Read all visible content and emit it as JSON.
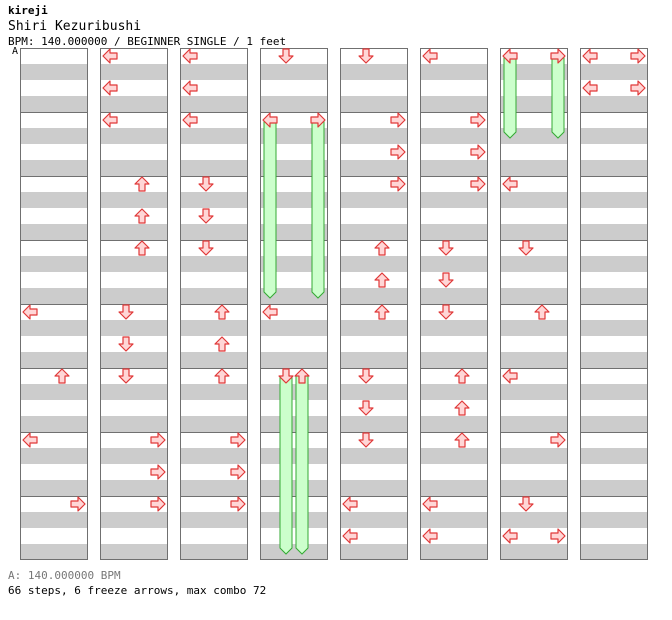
{
  "header": {
    "stepmaker": "kireji",
    "song": "Shiri Kezuribushi",
    "info": "BPM: 140.000000 / BEGINNER SINGLE / 1 feet"
  },
  "bpm_marker": "A",
  "footer": {
    "bpm_line": "A: 140.000000 BPM",
    "stats": "66 steps, 6 freeze arrows, max combo 72"
  },
  "colors": {
    "stripe": "#cccccc",
    "border": "#707070",
    "arrow_fill": "#ffd6d6",
    "arrow_stroke": "#e03838",
    "freeze_fill": "#ccffcc",
    "freeze_stroke": "#33aa33"
  },
  "chart_data": {
    "type": "step-chart",
    "columns": 8,
    "measures_per_column": 8,
    "slots_per_measure": 4,
    "notes": [
      {
        "m": 0,
        "s": 0,
        "d": "L"
      },
      {
        "m": 0,
        "s": 1,
        "d": "L"
      },
      {
        "m": 0,
        "s": 2,
        "d": "L"
      },
      {
        "m": 0,
        "s": 3,
        "d": "L"
      },
      {
        "m": 0,
        "s": 4,
        "d": "L"
      },
      {
        "m": 0,
        "s": 5,
        "d": "L"
      },
      {
        "m": 0,
        "s": 6,
        "d": "L"
      },
      {
        "m": 0,
        "s": 6.5,
        "d": "U"
      },
      {
        "m": 0,
        "s": 7.5,
        "d": "U"
      },
      {
        "m": 0,
        "s": 8.5,
        "d": "U"
      },
      {
        "m": 0,
        "s": 9.5,
        "d": "L"
      },
      {
        "m": 0,
        "s": 11.5,
        "d": "U"
      },
      {
        "m": 0,
        "s": 13.5,
        "d": "U"
      },
      {
        "m": 0,
        "s": 15.5,
        "d": "U"
      },
      {
        "m": 0,
        "s": 17.5,
        "d": "U"
      },
      {
        "m": 0,
        "s": 18.5,
        "d": "L"
      },
      {
        "m": 0,
        "s": 20,
        "d": "R"
      },
      {
        "m": 0,
        "s": 22,
        "d": "R"
      },
      {
        "m": 0,
        "s": 24,
        "d": "R"
      },
      {
        "m": 0,
        "s": 26,
        "d": "R"
      },
      {
        "m": 0,
        "s": 28,
        "d": "R"
      },
      {
        "m": 0,
        "s": 30,
        "d": "R"
      },
      {
        "m": 0,
        "s": 32,
        "d": "R"
      },
      {
        "m": 8,
        "s": 0,
        "d": "L"
      },
      {
        "m": 8,
        "s": 1,
        "d": "L"
      },
      {
        "m": 8,
        "s": 2,
        "d": "L"
      },
      {
        "m": 8,
        "s": 4,
        "d": "D"
      },
      {
        "m": 8,
        "s": 5,
        "d": "D"
      },
      {
        "m": 8,
        "s": 6,
        "d": "D"
      },
      {
        "m": 8,
        "s": 8,
        "d": "U"
      },
      {
        "m": 8,
        "s": 9,
        "d": "U"
      },
      {
        "m": 8,
        "s": 10,
        "d": "U"
      },
      {
        "m": 8,
        "s": 12,
        "d": "R"
      },
      {
        "m": 8,
        "s": 13,
        "d": "R"
      },
      {
        "m": 8,
        "s": 14,
        "d": "R"
      },
      {
        "m": 8,
        "s": 16,
        "d": "R"
      },
      {
        "m": 8,
        "s": 18,
        "d": "D"
      },
      {
        "m": 8,
        "s": 20,
        "d": "D"
      },
      {
        "m": 8,
        "s": 22,
        "d": "D"
      },
      {
        "m": 8,
        "s": 24,
        "d": "U"
      },
      {
        "m": 8,
        "s": 26,
        "d": "U"
      },
      {
        "m": 8,
        "s": 28,
        "d": "U"
      },
      {
        "m": 8,
        "s": 30,
        "d": "U"
      }
    ],
    "note_cells": [
      {
        "col": 0,
        "row": 8,
        "x": 10,
        "d": "L"
      },
      {
        "col": 0,
        "row": 10,
        "x": 42,
        "d": "U"
      },
      {
        "col": 0,
        "row": 12,
        "x": 10,
        "d": "L"
      },
      {
        "col": 0,
        "row": 14,
        "x": 58,
        "d": "R"
      },
      {
        "col": 1,
        "row": 0,
        "x": 10,
        "d": "L"
      },
      {
        "col": 1,
        "row": 1,
        "x": 10,
        "d": "L"
      },
      {
        "col": 1,
        "row": 2,
        "x": 10,
        "d": "L"
      },
      {
        "col": 1,
        "row": 4,
        "x": 42,
        "d": "U"
      },
      {
        "col": 1,
        "row": 5,
        "x": 42,
        "d": "U"
      },
      {
        "col": 1,
        "row": 6,
        "x": 42,
        "d": "U"
      },
      {
        "col": 1,
        "row": 8,
        "x": 26,
        "d": "D"
      },
      {
        "col": 1,
        "row": 9,
        "x": 26,
        "d": "D"
      },
      {
        "col": 1,
        "row": 10,
        "x": 26,
        "d": "D"
      },
      {
        "col": 1,
        "row": 12,
        "x": 58,
        "d": "R"
      },
      {
        "col": 1,
        "row": 13,
        "x": 58,
        "d": "R"
      },
      {
        "col": 1,
        "row": 14,
        "x": 58,
        "d": "R"
      },
      {
        "col": 2,
        "row": 0,
        "x": 10,
        "d": "L"
      },
      {
        "col": 2,
        "row": 1,
        "x": 10,
        "d": "L"
      },
      {
        "col": 2,
        "row": 2,
        "x": 10,
        "d": "L"
      },
      {
        "col": 2,
        "row": 4,
        "x": 26,
        "d": "D"
      },
      {
        "col": 2,
        "row": 5,
        "x": 26,
        "d": "D"
      },
      {
        "col": 2,
        "row": 6,
        "x": 26,
        "d": "D"
      },
      {
        "col": 2,
        "row": 8,
        "x": 42,
        "d": "U"
      },
      {
        "col": 2,
        "row": 9,
        "x": 42,
        "d": "U"
      },
      {
        "col": 2,
        "row": 10,
        "x": 42,
        "d": "U"
      },
      {
        "col": 2,
        "row": 12,
        "x": 58,
        "d": "R"
      },
      {
        "col": 2,
        "row": 13,
        "x": 58,
        "d": "R"
      },
      {
        "col": 2,
        "row": 14,
        "x": 58,
        "d": "R"
      },
      {
        "col": 3,
        "row": 0,
        "x": 26,
        "d": "D"
      },
      {
        "col": 3,
        "row": 2,
        "x": 10,
        "d": "L"
      },
      {
        "col": 3,
        "row": 2,
        "x": 58,
        "d": "R"
      },
      {
        "col": 3,
        "row": 8,
        "x": 10,
        "d": "L"
      },
      {
        "col": 3,
        "row": 10,
        "x": 26,
        "d": "D"
      },
      {
        "col": 3,
        "row": 10,
        "x": 42,
        "d": "U"
      },
      {
        "col": 4,
        "row": 0,
        "x": 26,
        "d": "D"
      },
      {
        "col": 4,
        "row": 2,
        "x": 58,
        "d": "R"
      },
      {
        "col": 4,
        "row": 3,
        "x": 58,
        "d": "R"
      },
      {
        "col": 4,
        "row": 4,
        "x": 58,
        "d": "R"
      },
      {
        "col": 4,
        "row": 6,
        "x": 42,
        "d": "U"
      },
      {
        "col": 4,
        "row": 7,
        "x": 42,
        "d": "U"
      },
      {
        "col": 4,
        "row": 8,
        "x": 42,
        "d": "U"
      },
      {
        "col": 4,
        "row": 10,
        "x": 26,
        "d": "D"
      },
      {
        "col": 4,
        "row": 11,
        "x": 26,
        "d": "D"
      },
      {
        "col": 4,
        "row": 12,
        "x": 26,
        "d": "D"
      },
      {
        "col": 4,
        "row": 14,
        "x": 10,
        "d": "L"
      },
      {
        "col": 4,
        "row": 15,
        "x": 10,
        "d": "L"
      },
      {
        "col": 5,
        "row": 0,
        "x": 10,
        "d": "L"
      },
      {
        "col": 5,
        "row": 2,
        "x": 58,
        "d": "R"
      },
      {
        "col": 5,
        "row": 3,
        "x": 58,
        "d": "R"
      },
      {
        "col": 5,
        "row": 4,
        "x": 58,
        "d": "R"
      },
      {
        "col": 5,
        "row": 6,
        "x": 26,
        "d": "D"
      },
      {
        "col": 5,
        "row": 7,
        "x": 26,
        "d": "D"
      },
      {
        "col": 5,
        "row": 8,
        "x": 26,
        "d": "D"
      },
      {
        "col": 5,
        "row": 10,
        "x": 42,
        "d": "U"
      },
      {
        "col": 5,
        "row": 11,
        "x": 42,
        "d": "U"
      },
      {
        "col": 5,
        "row": 12,
        "x": 42,
        "d": "U"
      },
      {
        "col": 5,
        "row": 14,
        "x": 10,
        "d": "L"
      },
      {
        "col": 5,
        "row": 15,
        "x": 10,
        "d": "L"
      },
      {
        "col": 6,
        "row": 0,
        "x": 10,
        "d": "L"
      },
      {
        "col": 6,
        "row": 0,
        "x": 58,
        "d": "R"
      },
      {
        "col": 6,
        "row": 4,
        "x": 10,
        "d": "L"
      },
      {
        "col": 6,
        "row": 6,
        "x": 26,
        "d": "D"
      },
      {
        "col": 6,
        "row": 8,
        "x": 42,
        "d": "U"
      },
      {
        "col": 6,
        "row": 10,
        "x": 10,
        "d": "L"
      },
      {
        "col": 6,
        "row": 12,
        "x": 58,
        "d": "R"
      },
      {
        "col": 6,
        "row": 14,
        "x": 26,
        "d": "D"
      },
      {
        "col": 6,
        "row": 15,
        "x": 10,
        "d": "L"
      },
      {
        "col": 6,
        "row": 15,
        "x": 58,
        "d": "R"
      },
      {
        "col": 7,
        "row": 0,
        "x": 10,
        "d": "L"
      },
      {
        "col": 7,
        "row": 0,
        "x": 58,
        "d": "R"
      },
      {
        "col": 7,
        "row": 1,
        "x": 10,
        "d": "L"
      },
      {
        "col": 7,
        "row": 1,
        "x": 58,
        "d": "R"
      }
    ],
    "freezes": [
      {
        "col": 3,
        "x": 10,
        "from": 2,
        "to": 7
      },
      {
        "col": 3,
        "x": 58,
        "from": 2,
        "to": 7
      },
      {
        "col": 3,
        "x": 26,
        "from": 10,
        "to": 15
      },
      {
        "col": 3,
        "x": 42,
        "from": 10,
        "to": 15
      },
      {
        "col": 6,
        "x": 10,
        "from": 0,
        "to": 2
      },
      {
        "col": 6,
        "x": 58,
        "from": 0,
        "to": 2
      }
    ]
  }
}
